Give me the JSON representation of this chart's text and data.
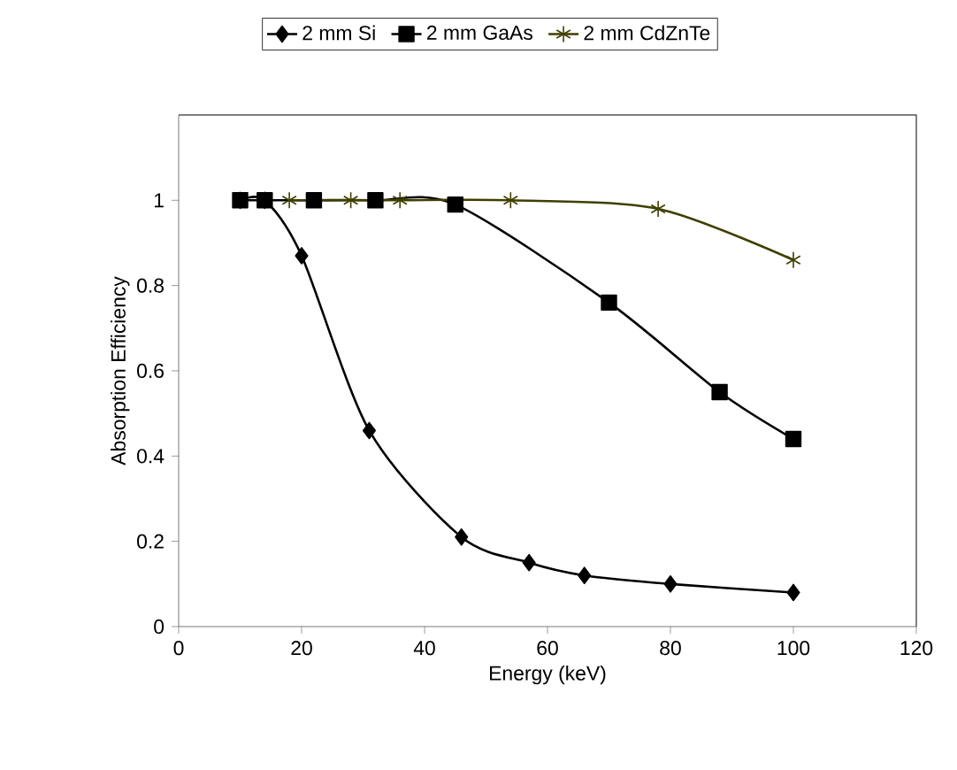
{
  "chart_data": {
    "type": "line",
    "xlabel": "Energy (keV)",
    "ylabel": "Absorption Efficiency",
    "xlim": [
      0,
      120
    ],
    "xticks": [
      0,
      20,
      40,
      60,
      80,
      100,
      120
    ],
    "ylim": [
      0,
      1.2
    ],
    "yticks": [
      0,
      0.2,
      0.4,
      0.6,
      0.8,
      1
    ],
    "grid": false,
    "legend": "top",
    "line_style": "solid",
    "series": [
      {
        "name": "2 mm Si",
        "color": "#000000",
        "marker": "diamond",
        "x": [
          10,
          14,
          20,
          31,
          46,
          57,
          66,
          80,
          100
        ],
        "values": [
          1,
          1,
          0.87,
          0.46,
          0.21,
          0.15,
          0.12,
          0.1,
          0.08
        ]
      },
      {
        "name": "2 mm GaAs",
        "color": "#000000",
        "marker": "square",
        "x": [
          10,
          14,
          22,
          32,
          45,
          70,
          88,
          100
        ],
        "values": [
          1,
          1,
          1,
          1,
          0.99,
          0.76,
          0.55,
          0.44
        ]
      },
      {
        "name": "2 mm CdZnTe",
        "color": "#3f3f00",
        "marker": "cross",
        "x": [
          18,
          28,
          36,
          54,
          78,
          100
        ],
        "values": [
          1,
          1,
          1,
          1,
          0.98,
          0.86
        ]
      }
    ]
  }
}
